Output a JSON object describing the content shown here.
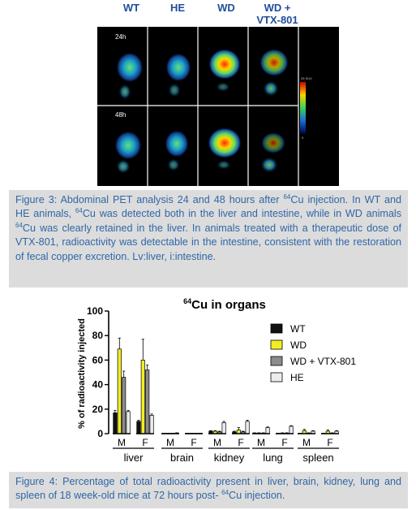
{
  "pet": {
    "columns": [
      "WT",
      "HE",
      "WD",
      "WD +\nVTX-801"
    ],
    "rows": [
      "24h",
      "48h"
    ],
    "scale_max": "25 SUV",
    "scale_min": "0"
  },
  "figure3_caption": {
    "seg1": "Figure 3: Abdominal PET analysis 24 and 48 hours after ",
    "sup1": "64",
    "seg2": "Cu injection. In WT and HE animals, ",
    "sup2": "64",
    "seg3": "Cu was detected both in the liver and intestine, while in WD animals ",
    "sup3": "64",
    "seg4": "Cu was clearly retained in the liver. In animals treated with a therapeutic dose of VTX-801, radioactivity was detectable in the intestine, consistent with the restoration of fecal copper excretion. Lv:liver, i:intestine."
  },
  "figure4_caption": {
    "seg1": "Figure 4: Percentage of total radioactivity present in liver, brain, kidney, lung and spleen of 18 week-old mice at 72 hours post- ",
    "sup1": "64",
    "seg2": "Cu injection."
  },
  "colors": {
    "WT": "#111111",
    "WD": "#f2ee24",
    "WD + VTX-801": "#8c8c8c",
    "HE": "#ececec",
    "caption_text": "#2f67a7",
    "column_heads": "#1f4e9b"
  },
  "chart_data": {
    "type": "bar",
    "title_sup": "64",
    "title": "Cu in organs",
    "ylabel": "% of radioactivity injected",
    "xlabel": "",
    "ylim": [
      0,
      100
    ],
    "yticks": [
      0,
      20,
      40,
      60,
      80,
      100
    ],
    "grid": false,
    "legend_position": "right",
    "groups": [
      {
        "organ": "liver",
        "sexes": [
          "M",
          "F"
        ]
      },
      {
        "organ": "brain",
        "sexes": [
          "M",
          "F"
        ]
      },
      {
        "organ": "kidney",
        "sexes": [
          "M",
          "F"
        ]
      },
      {
        "organ": "lung",
        "sexes": [
          "M",
          "F"
        ]
      },
      {
        "organ": "spleen",
        "sexes": [
          "M",
          "F"
        ]
      }
    ],
    "categories": [
      "liver M",
      "liver F",
      "brain M",
      "brain F",
      "kidney M",
      "kidney F",
      "lung M",
      "lung F",
      "spleen M",
      "spleen F"
    ],
    "series": [
      {
        "name": "WT",
        "values": [
          17,
          10,
          0.2,
          0.2,
          2,
          1.5,
          0.5,
          0.3,
          0.3,
          0.3
        ],
        "errors": [
          2,
          1,
          0.1,
          0.1,
          0.5,
          0.5,
          0.2,
          0.1,
          0.1,
          0.1
        ]
      },
      {
        "name": "WD",
        "values": [
          69,
          60,
          0.3,
          0.3,
          2,
          3,
          0.5,
          0.5,
          2.5,
          2
        ],
        "errors": [
          9,
          17,
          0.1,
          0.1,
          0.5,
          2,
          0.2,
          0.2,
          1,
          1
        ]
      },
      {
        "name": "WD + VTX-801",
        "values": [
          46,
          52,
          0.3,
          0.3,
          1.5,
          1.5,
          0.5,
          0.5,
          0.5,
          0.5
        ],
        "errors": [
          5,
          4,
          0.1,
          0.1,
          0.5,
          0.5,
          0.2,
          0.2,
          0.2,
          0.2
        ]
      },
      {
        "name": "HE",
        "values": [
          18,
          15,
          0.5,
          0.3,
          9,
          10,
          5,
          6,
          2,
          2
        ],
        "errors": [
          1,
          1,
          0.2,
          0.1,
          1,
          1,
          0.5,
          0.5,
          0.5,
          0.5
        ]
      }
    ]
  }
}
